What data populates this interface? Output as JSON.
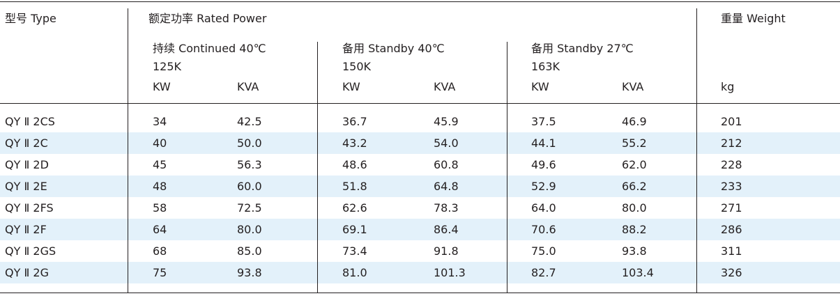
{
  "header": {
    "type_label": "型号 Type",
    "rated_power_label": "额定功率 Rated Power",
    "weight_label": "重量 Weight",
    "groups": [
      {
        "title": "持续 Continued 40℃",
        "temp": "125K",
        "col1": "KW",
        "col2": "KVA"
      },
      {
        "title": "备用 Standby  40℃",
        "temp": "150K",
        "col1": "KW",
        "col2": "KVA"
      },
      {
        "title": "备用 Standby  27℃",
        "temp": "163K",
        "col1": "KW",
        "col2": "KVA"
      }
    ],
    "weight_unit": "kg"
  },
  "rows": [
    {
      "model": "QY Ⅱ 2CS",
      "cont_kw": "34",
      "cont_kva": "42.5",
      "sb40_kw": "36.7",
      "sb40_kva": "45.9",
      "sb27_kw": "37.5",
      "sb27_kva": "46.9",
      "weight": "201"
    },
    {
      "model": "QY Ⅱ 2C",
      "cont_kw": "40",
      "cont_kva": "50.0",
      "sb40_kw": "43.2",
      "sb40_kva": "54.0",
      "sb27_kw": "44.1",
      "sb27_kva": "55.2",
      "weight": "212"
    },
    {
      "model": "QY Ⅱ 2D",
      "cont_kw": "45",
      "cont_kva": "56.3",
      "sb40_kw": "48.6",
      "sb40_kva": "60.8",
      "sb27_kw": "49.6",
      "sb27_kva": "62.0",
      "weight": "228"
    },
    {
      "model": "QY Ⅱ 2E",
      "cont_kw": "48",
      "cont_kva": "60.0",
      "sb40_kw": "51.8",
      "sb40_kva": "64.8",
      "sb27_kw": "52.9",
      "sb27_kva": "66.2",
      "weight": "233"
    },
    {
      "model": "QY Ⅱ 2FS",
      "cont_kw": "58",
      "cont_kva": "72.5",
      "sb40_kw": "62.6",
      "sb40_kva": "78.3",
      "sb27_kw": "64.0",
      "sb27_kva": "80.0",
      "weight": "271"
    },
    {
      "model": "QY Ⅱ 2F",
      "cont_kw": "64",
      "cont_kva": "80.0",
      "sb40_kw": "69.1",
      "sb40_kva": "86.4",
      "sb27_kw": "70.6",
      "sb27_kva": "88.2",
      "weight": "286"
    },
    {
      "model": "QY Ⅱ 2GS",
      "cont_kw": "68",
      "cont_kva": "85.0",
      "sb40_kw": "73.4",
      "sb40_kva": "91.8",
      "sb27_kw": "75.0",
      "sb27_kva": "93.8",
      "weight": "311"
    },
    {
      "model": "QY Ⅱ 2G",
      "cont_kw": "75",
      "cont_kva": "93.8",
      "sb40_kw": "81.0",
      "sb40_kva": "101.3",
      "sb27_kw": "82.7",
      "sb27_kva": "103.4",
      "weight": "326"
    }
  ],
  "colors": {
    "stripe": "#e3f1fa",
    "rule": "#231f20",
    "text": "#231f20"
  }
}
